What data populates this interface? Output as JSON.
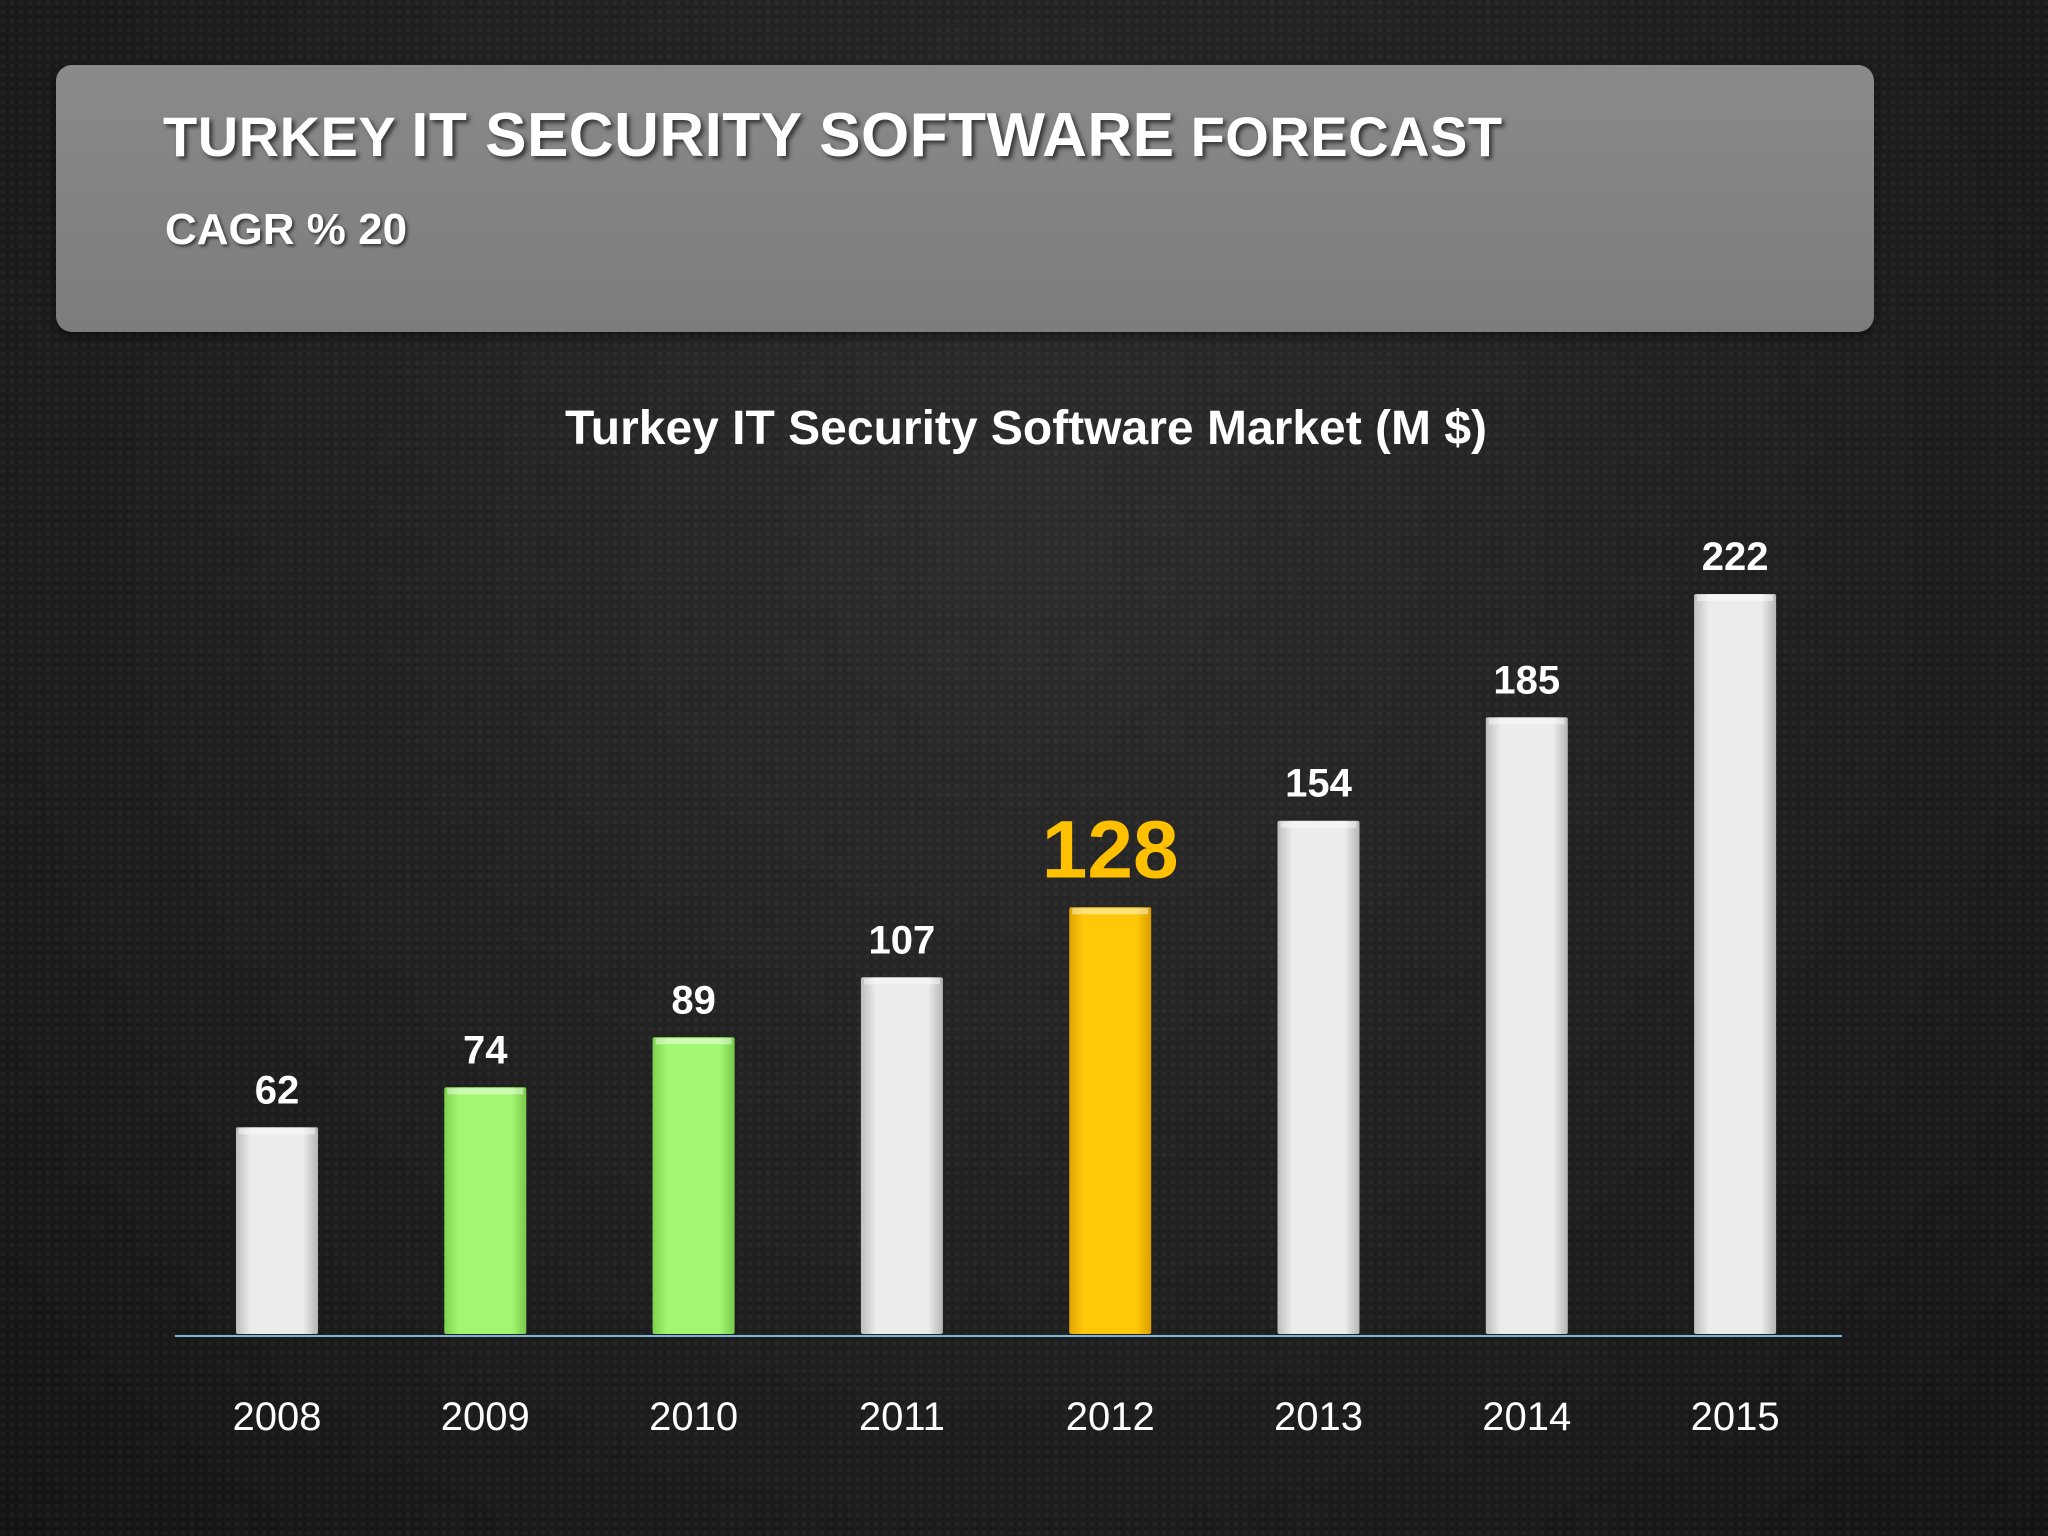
{
  "slide": {
    "title_prefix": "TURKEY ",
    "title_main": "IT SECURITY SOFTWARE",
    "title_suffix": " FORECAST",
    "subtitle": "CAGR % 20"
  },
  "colors": {
    "default_bar": "#e6e6e6",
    "green_bar": "#9ef56e",
    "highlight_bar": "#ffc000",
    "highlight_label": "#ffc000",
    "axis_line": "#7fb4d9"
  },
  "chart_data": {
    "type": "bar",
    "title": "Turkey IT Security Software Market (M $)",
    "categories": [
      "2008",
      "2009",
      "2010",
      "2011",
      "2012",
      "2013",
      "2014",
      "2015"
    ],
    "values": [
      62,
      74,
      89,
      107,
      128,
      154,
      185,
      222
    ],
    "data_labels": [
      "62",
      "74",
      "89",
      "107",
      "128",
      "154",
      "185",
      "222"
    ],
    "bar_colors": [
      "#e6e6e6",
      "#9ef56e",
      "#9ef56e",
      "#e6e6e6",
      "#ffc000",
      "#e6e6e6",
      "#e6e6e6",
      "#e6e6e6"
    ],
    "highlight_category": "2012",
    "xlabel": "",
    "ylabel": "",
    "ylim": [
      0,
      222
    ],
    "grid": false,
    "legend": "none"
  }
}
